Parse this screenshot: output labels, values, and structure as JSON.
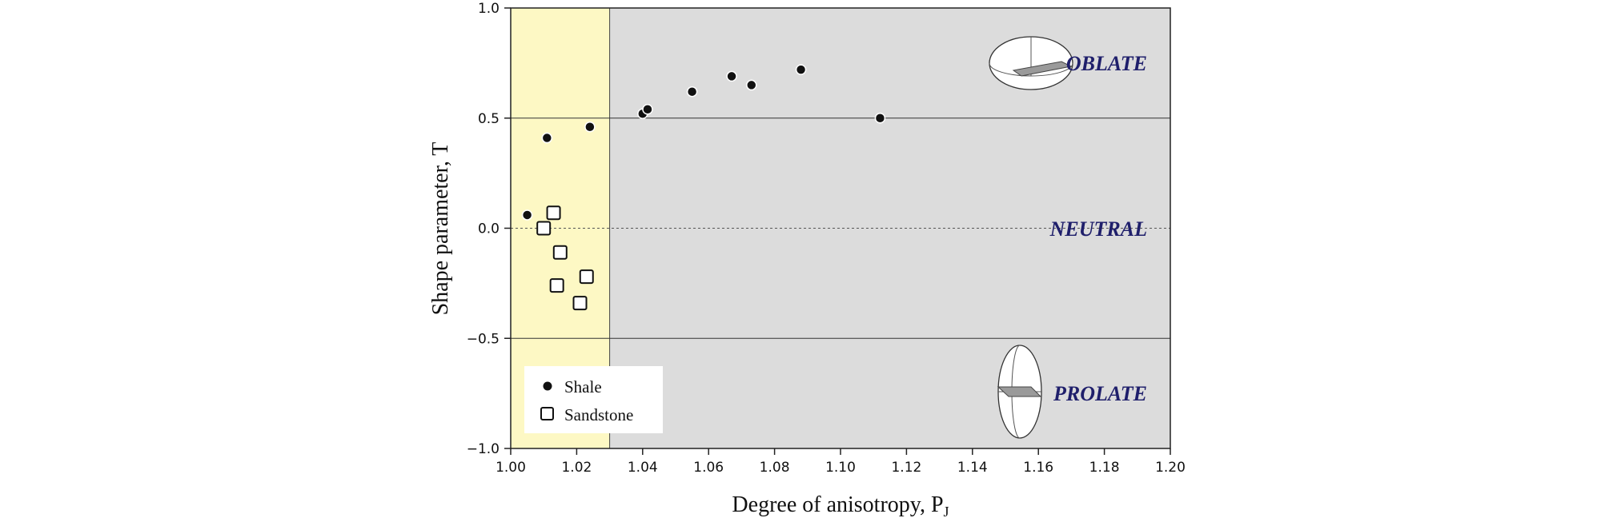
{
  "chart_data": {
    "type": "scatter",
    "xlabel_main": "Degree of anisotropy, P",
    "xlabel_sub": "J",
    "ylabel": "Shape parameter, T",
    "xlim": [
      1.0,
      1.2
    ],
    "ylim": [
      -1.0,
      1.0
    ],
    "x_ticks": [
      "1.00",
      "1.02",
      "1.04",
      "1.06",
      "1.08",
      "1.10",
      "1.12",
      "1.14",
      "1.16",
      "1.18",
      "1.20"
    ],
    "x_tick_values": [
      1.0,
      1.02,
      1.04,
      1.06,
      1.08,
      1.1,
      1.12,
      1.14,
      1.16,
      1.18,
      1.2
    ],
    "y_ticks": [
      "1.0",
      "0.5",
      "0.0",
      "−0.5",
      "−1.0"
    ],
    "y_tick_values": [
      1.0,
      0.5,
      0.0,
      -0.5,
      -1.0
    ],
    "zones": {
      "oblate": "OBLATE",
      "neutral": "NEUTRAL",
      "prolate": "PROLATE"
    },
    "regions": {
      "highlight_x_range": [
        1.0,
        1.03
      ],
      "highlight_color": "#fdf8c4",
      "background_color": "#dcdcdc"
    },
    "series": [
      {
        "name": "Shale",
        "marker": "filled-circle",
        "points": [
          [
            1.005,
            0.06
          ],
          [
            1.011,
            0.41
          ],
          [
            1.024,
            0.46
          ],
          [
            1.04,
            0.52
          ],
          [
            1.0415,
            0.54
          ],
          [
            1.055,
            0.62
          ],
          [
            1.067,
            0.69
          ],
          [
            1.073,
            0.65
          ],
          [
            1.088,
            0.72
          ],
          [
            1.112,
            0.5
          ]
        ]
      },
      {
        "name": "Sandstone",
        "marker": "open-square",
        "points": [
          [
            1.01,
            0.0
          ],
          [
            1.013,
            0.07
          ],
          [
            1.015,
            -0.11
          ],
          [
            1.014,
            -0.26
          ],
          [
            1.021,
            -0.34
          ],
          [
            1.023,
            -0.22
          ]
        ]
      }
    ],
    "legend": {
      "position": "bottom-left",
      "entries": [
        "Shale",
        "Sandstone"
      ]
    },
    "colors": {
      "marker_fill": "#111111",
      "grid_line": "#333333"
    }
  }
}
